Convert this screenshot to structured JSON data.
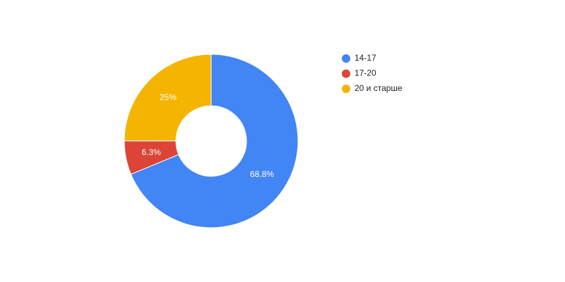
{
  "chart_data": {
    "type": "pie",
    "donut": true,
    "categories": [
      "14-17",
      "17-20",
      "20 и старше"
    ],
    "values": [
      68.8,
      6.3,
      25
    ],
    "value_labels": [
      "68.8%",
      "6.3%",
      "25%"
    ],
    "colors": [
      "#4285f4",
      "#db4437",
      "#f4b400"
    ],
    "legend": "right"
  }
}
